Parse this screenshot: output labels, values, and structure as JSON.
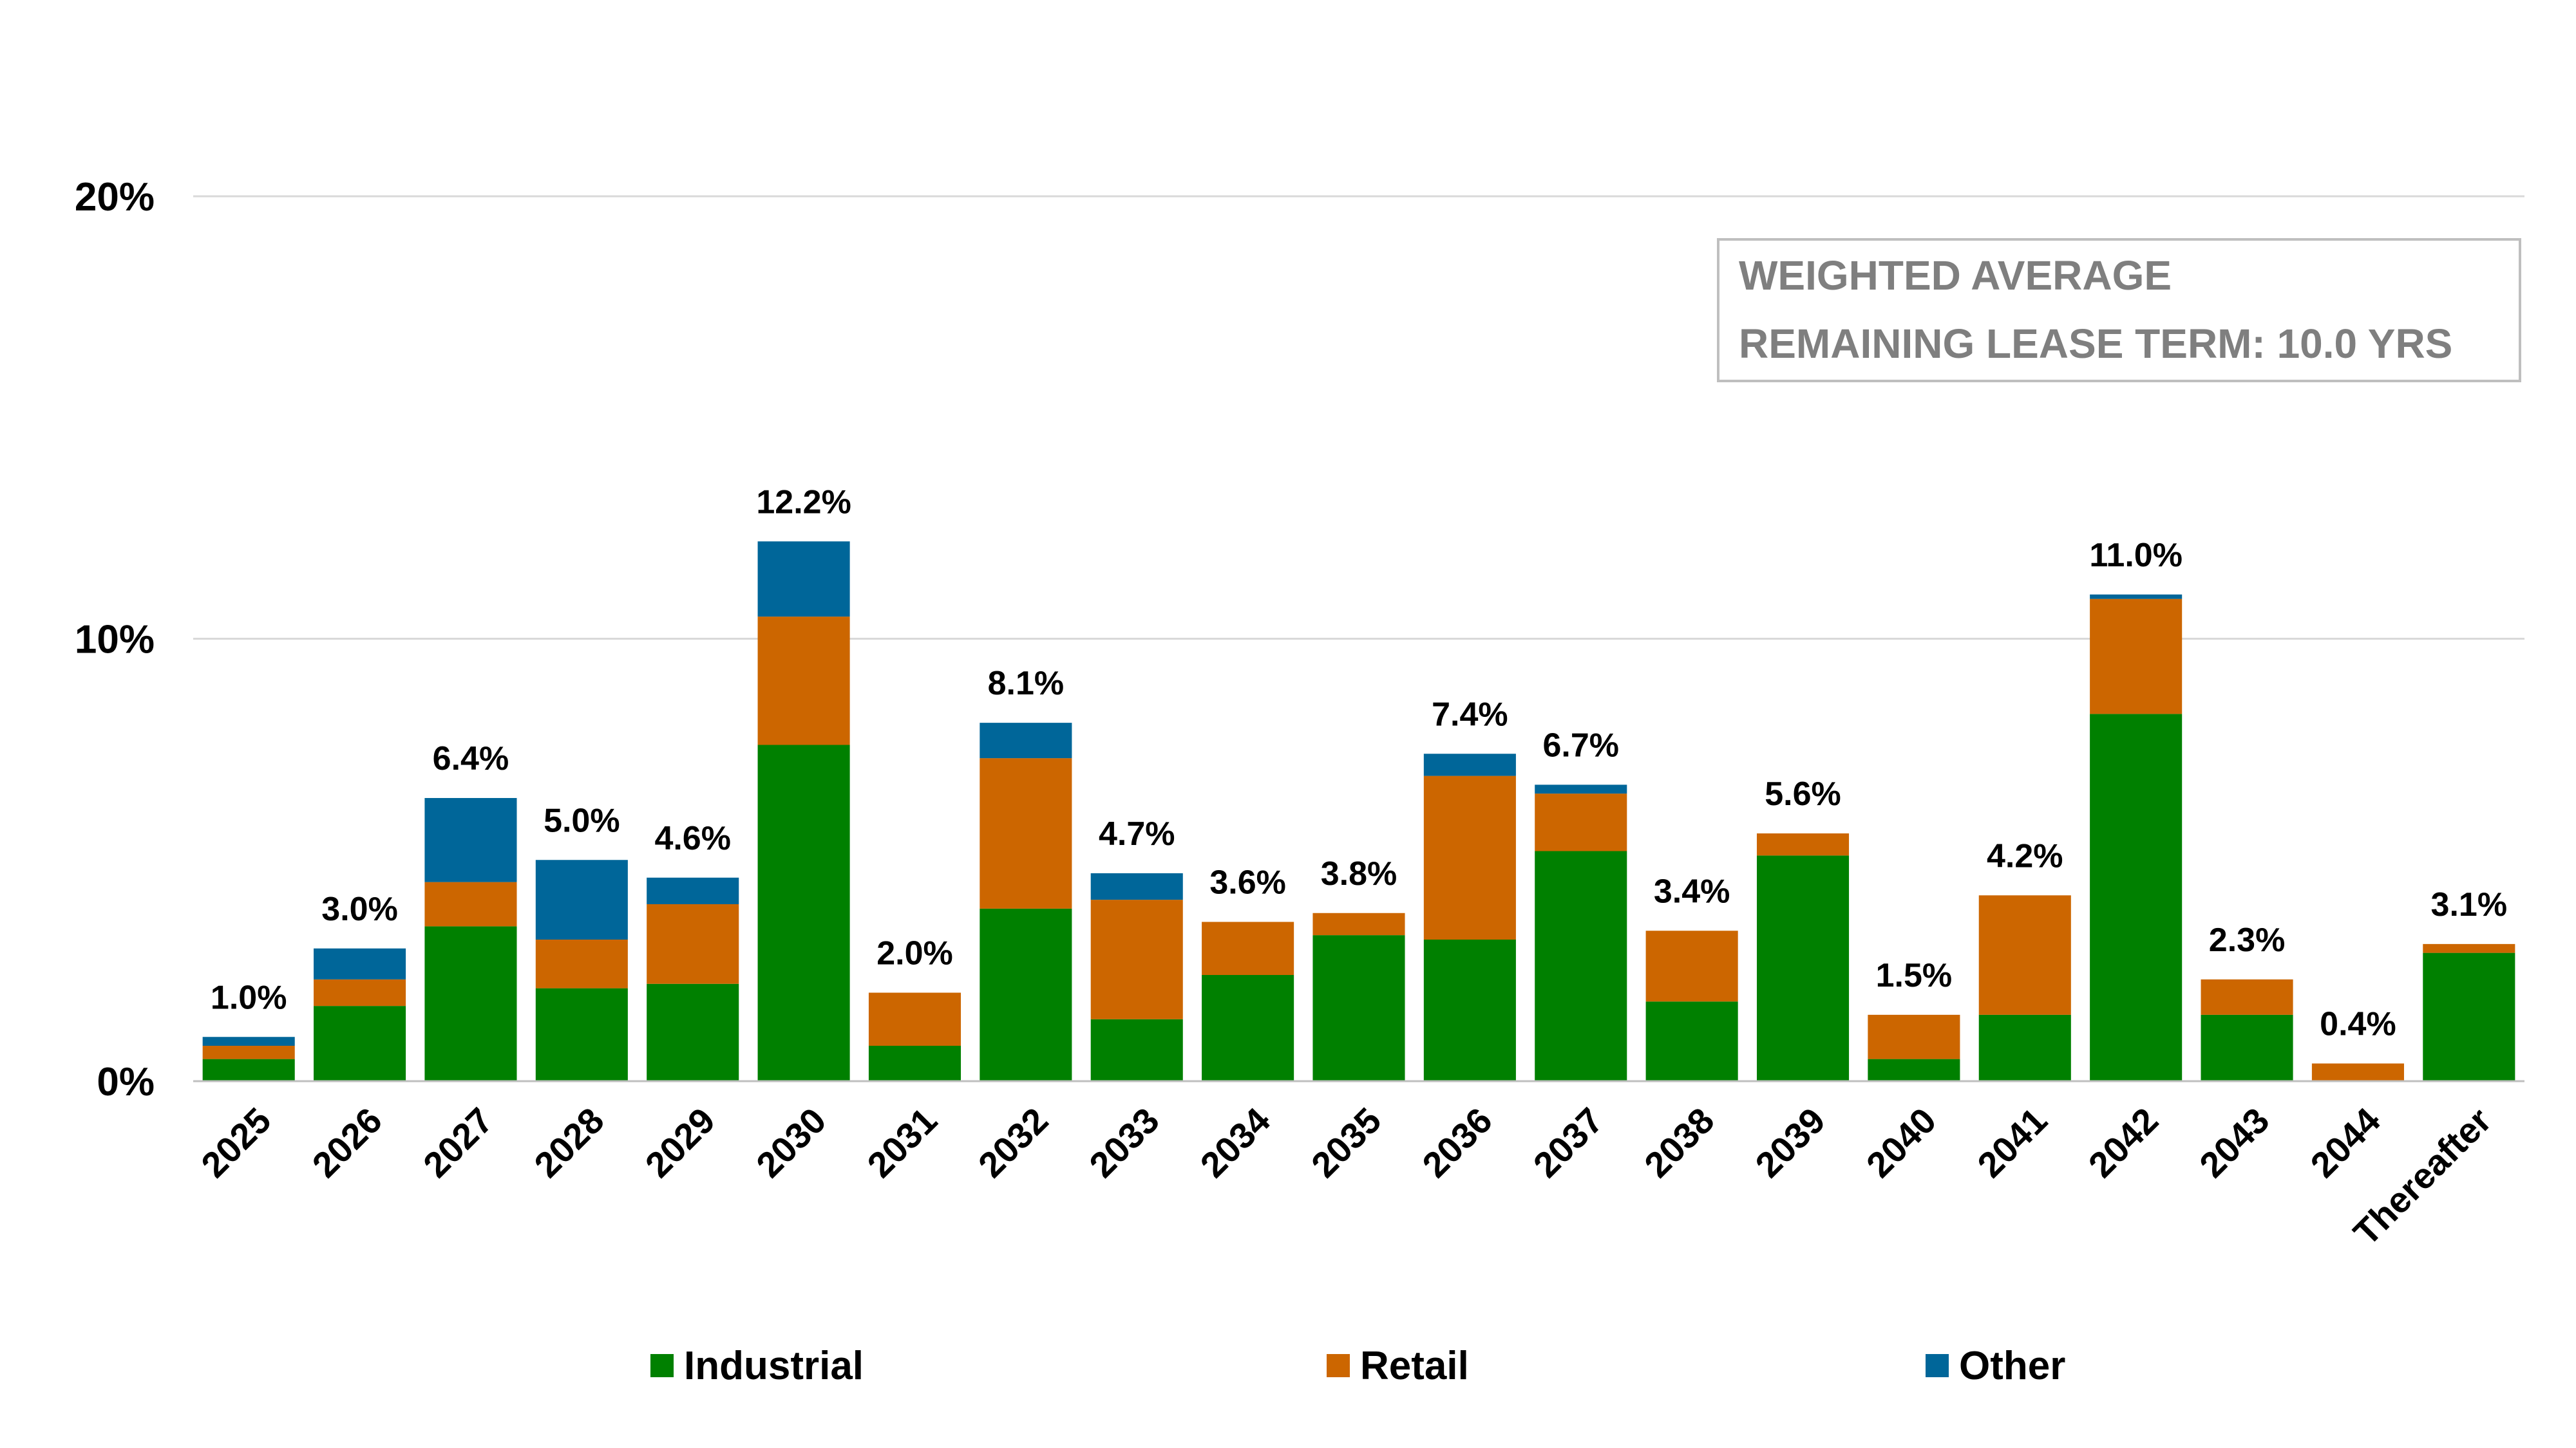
{
  "chart_data": {
    "type": "bar",
    "stacked": true,
    "categories": [
      "2025",
      "2026",
      "2027",
      "2028",
      "2029",
      "2030",
      "2031",
      "2032",
      "2033",
      "2034",
      "2035",
      "2036",
      "2037",
      "2038",
      "2039",
      "2040",
      "2041",
      "2042",
      "2043",
      "2044",
      "Thereafter"
    ],
    "series": [
      {
        "name": "Industrial",
        "color": "#008000",
        "values": [
          0.5,
          1.7,
          3.5,
          2.1,
          2.2,
          7.6,
          0.8,
          3.9,
          1.4,
          2.4,
          3.3,
          3.2,
          5.2,
          1.8,
          5.1,
          0.5,
          1.5,
          8.3,
          1.5,
          0.0,
          2.9
        ]
      },
      {
        "name": "Retail",
        "color": "#CC6600",
        "values": [
          0.3,
          0.6,
          1.0,
          1.1,
          1.8,
          2.9,
          1.2,
          3.4,
          2.7,
          1.2,
          0.5,
          3.7,
          1.3,
          1.6,
          0.5,
          1.0,
          2.7,
          2.6,
          0.8,
          0.4,
          0.2
        ]
      },
      {
        "name": "Other",
        "color": "#006699",
        "values": [
          0.2,
          0.7,
          1.9,
          1.8,
          0.6,
          1.7,
          0.0,
          0.8,
          0.6,
          0.0,
          0.0,
          0.5,
          0.2,
          0.0,
          0.0,
          0.0,
          0.0,
          0.1,
          0.0,
          0.0,
          0.0
        ]
      }
    ],
    "totals": [
      "1.0%",
      "3.0%",
      "6.4%",
      "5.0%",
      "4.6%",
      "12.2%",
      "2.0%",
      "8.1%",
      "4.7%",
      "3.6%",
      "3.8%",
      "7.4%",
      "6.7%",
      "3.4%",
      "5.6%",
      "1.5%",
      "4.2%",
      "11.0%",
      "2.3%",
      "0.4%",
      "3.1%"
    ],
    "ylim": [
      0,
      20
    ],
    "yticks": [
      0,
      10,
      20
    ],
    "ytick_labels": [
      "0%",
      "10%",
      "20%"
    ],
    "grid": true,
    "legend_position": "bottom",
    "annotation": [
      "WEIGHTED AVERAGE",
      "REMAINING LEASE TERM: 10.0 YRS"
    ]
  }
}
